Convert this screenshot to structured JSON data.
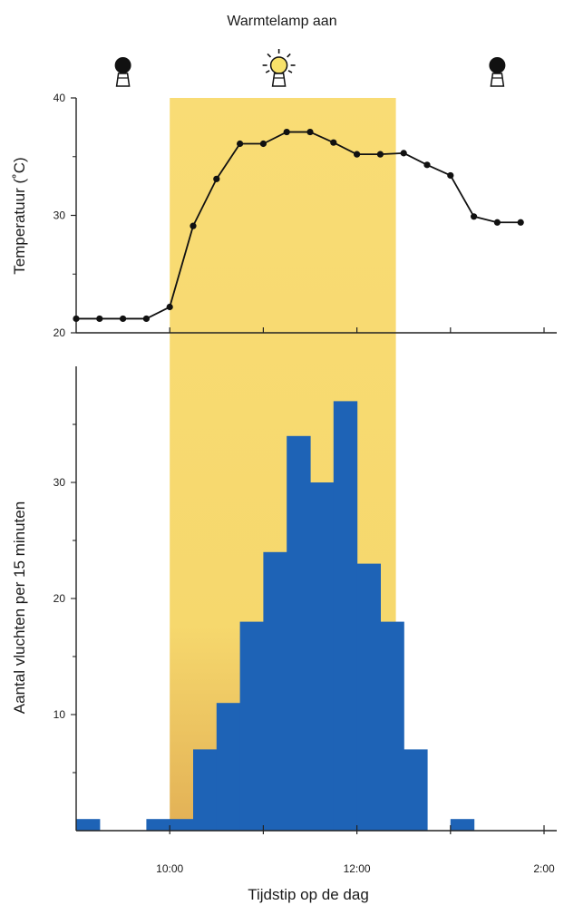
{
  "chart_data": [
    {
      "type": "line",
      "annotation": "Warmtelamp aan",
      "lamp_on_interval": [
        "10:00",
        "12:25"
      ],
      "lamp_icons": [
        {
          "time": "9:30",
          "state": "off"
        },
        {
          "time": "11:10",
          "state": "on"
        },
        {
          "time": "1:30",
          "state": "off"
        }
      ],
      "ylabel": "Temperatuur (˚C)",
      "ylim": [
        20,
        40
      ],
      "yticks": [
        "40",
        "30",
        "20"
      ],
      "x": [
        "9:00",
        "9:15",
        "9:30",
        "9:45",
        "10:00",
        "10:15",
        "10:30",
        "10:45",
        "11:00",
        "11:15",
        "11:30",
        "11:45",
        "12:00",
        "12:15",
        "12:30",
        "12:45",
        "1:00",
        "1:15",
        "1:30",
        "1:45"
      ],
      "values": [
        21.2,
        21.2,
        21.2,
        21.2,
        22.2,
        29.1,
        33.1,
        36.1,
        36.1,
        37.1,
        37.1,
        36.2,
        35.2,
        35.2,
        35.3,
        34.3,
        33.4,
        29.9,
        29.4,
        29.4
      ]
    },
    {
      "type": "bar",
      "ylabel": "Aantal vluchten per 15 minuten",
      "xlabel": "Tijdstip op de dag",
      "ylim": [
        0,
        40
      ],
      "yticks": [
        "10",
        "20",
        "30"
      ],
      "xticks": [
        "10:00",
        "12:00",
        "2:00"
      ],
      "bar_color": "#1e63b6",
      "categories": [
        "9:15",
        "9:30",
        "9:45",
        "10:00",
        "10:15",
        "10:30",
        "10:45",
        "11:00",
        "11:15",
        "11:30",
        "11:45",
        "12:00",
        "12:15",
        "12:30",
        "12:45",
        "1:00",
        "1:15",
        "1:30",
        "1:45",
        "2:00"
      ],
      "values": [
        1,
        0,
        0,
        1,
        1,
        7,
        11,
        18,
        24,
        34,
        30,
        37,
        23,
        18,
        7,
        0,
        1,
        0,
        0,
        0
      ]
    }
  ]
}
